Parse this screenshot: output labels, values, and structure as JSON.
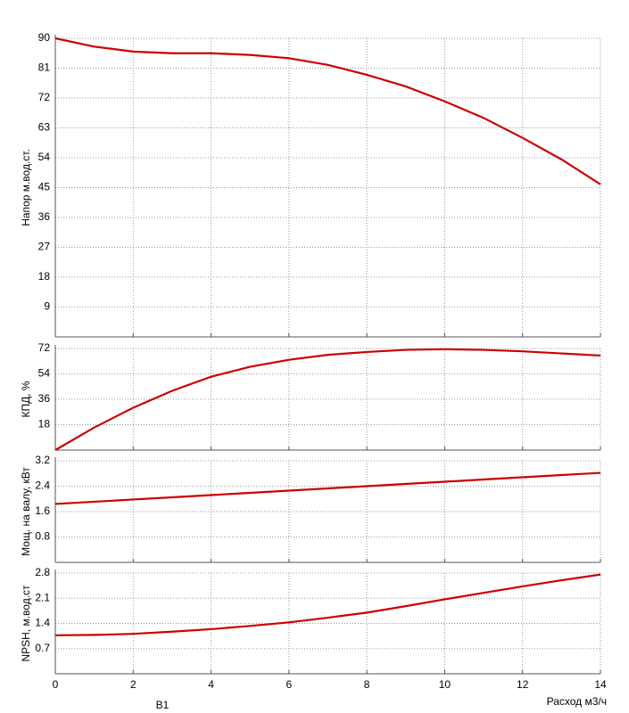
{
  "chart_data": [
    {
      "type": "line",
      "ylabel": "Напор м.вод.ст.",
      "x": [
        0,
        1,
        2,
        3,
        4,
        5,
        6,
        7,
        8,
        9,
        10,
        11,
        12,
        13,
        14
      ],
      "series": [
        {
          "color": "#cc0000",
          "values": [
            90,
            87.5,
            86,
            85.5,
            85.5,
            85,
            84,
            82,
            79,
            75.5,
            71,
            66,
            60,
            53.5,
            46
          ]
        }
      ],
      "xlim": [
        0,
        14
      ],
      "xticks": [
        0,
        2,
        4,
        6,
        8,
        10,
        12,
        14
      ],
      "ylim": [
        0,
        90
      ],
      "yticks": [
        9,
        18,
        27,
        36,
        45,
        54,
        63,
        72,
        81,
        90
      ],
      "grid": true
    },
    {
      "type": "line",
      "ylabel": "КПД, %",
      "x": [
        0,
        1,
        2,
        3,
        4,
        5,
        6,
        7,
        8,
        9,
        10,
        11,
        12,
        13,
        14
      ],
      "series": [
        {
          "color": "#cc0000",
          "values": [
            0,
            16,
            30,
            42,
            52,
            59,
            64,
            67.5,
            69.5,
            71,
            71.5,
            71,
            70,
            68.5,
            67
          ]
        }
      ],
      "xlim": [
        0,
        14
      ],
      "xticks": [
        0,
        2,
        4,
        6,
        8,
        10,
        12,
        14
      ],
      "ylim": [
        0,
        72
      ],
      "yticks": [
        18,
        36,
        54,
        72
      ],
      "grid": true
    },
    {
      "type": "line",
      "ylabel": "Мощ. на валу, кВт",
      "x": [
        0,
        1,
        2,
        3,
        4,
        5,
        6,
        7,
        8,
        9,
        10,
        11,
        12,
        13,
        14
      ],
      "series": [
        {
          "color": "#cc0000",
          "values": [
            1.84,
            1.91,
            1.98,
            2.05,
            2.12,
            2.19,
            2.26,
            2.33,
            2.4,
            2.47,
            2.54,
            2.61,
            2.68,
            2.75,
            2.82
          ]
        }
      ],
      "xlim": [
        0,
        14
      ],
      "xticks": [
        0,
        2,
        4,
        6,
        8,
        10,
        12,
        14
      ],
      "ylim": [
        0,
        3.2
      ],
      "yticks": [
        0.8,
        1.6,
        2.4,
        3.2
      ],
      "grid": true
    },
    {
      "type": "line",
      "ylabel": "NPSH, м.вод.ст",
      "xlabel": "Расход м3/ч",
      "note": "B1",
      "x": [
        0,
        1,
        2,
        3,
        4,
        5,
        6,
        7,
        8,
        9,
        10,
        11,
        12,
        13,
        14
      ],
      "series": [
        {
          "color": "#cc0000",
          "values": [
            1.07,
            1.08,
            1.11,
            1.17,
            1.24,
            1.33,
            1.43,
            1.56,
            1.7,
            1.88,
            2.07,
            2.25,
            2.43,
            2.6,
            2.76
          ]
        }
      ],
      "xlim": [
        0,
        14
      ],
      "xticks": [
        0,
        2,
        4,
        6,
        8,
        10,
        12,
        14
      ],
      "ylim": [
        0,
        2.8
      ],
      "yticks": [
        0.7,
        1.4,
        2.1,
        2.8
      ],
      "grid": true
    }
  ]
}
